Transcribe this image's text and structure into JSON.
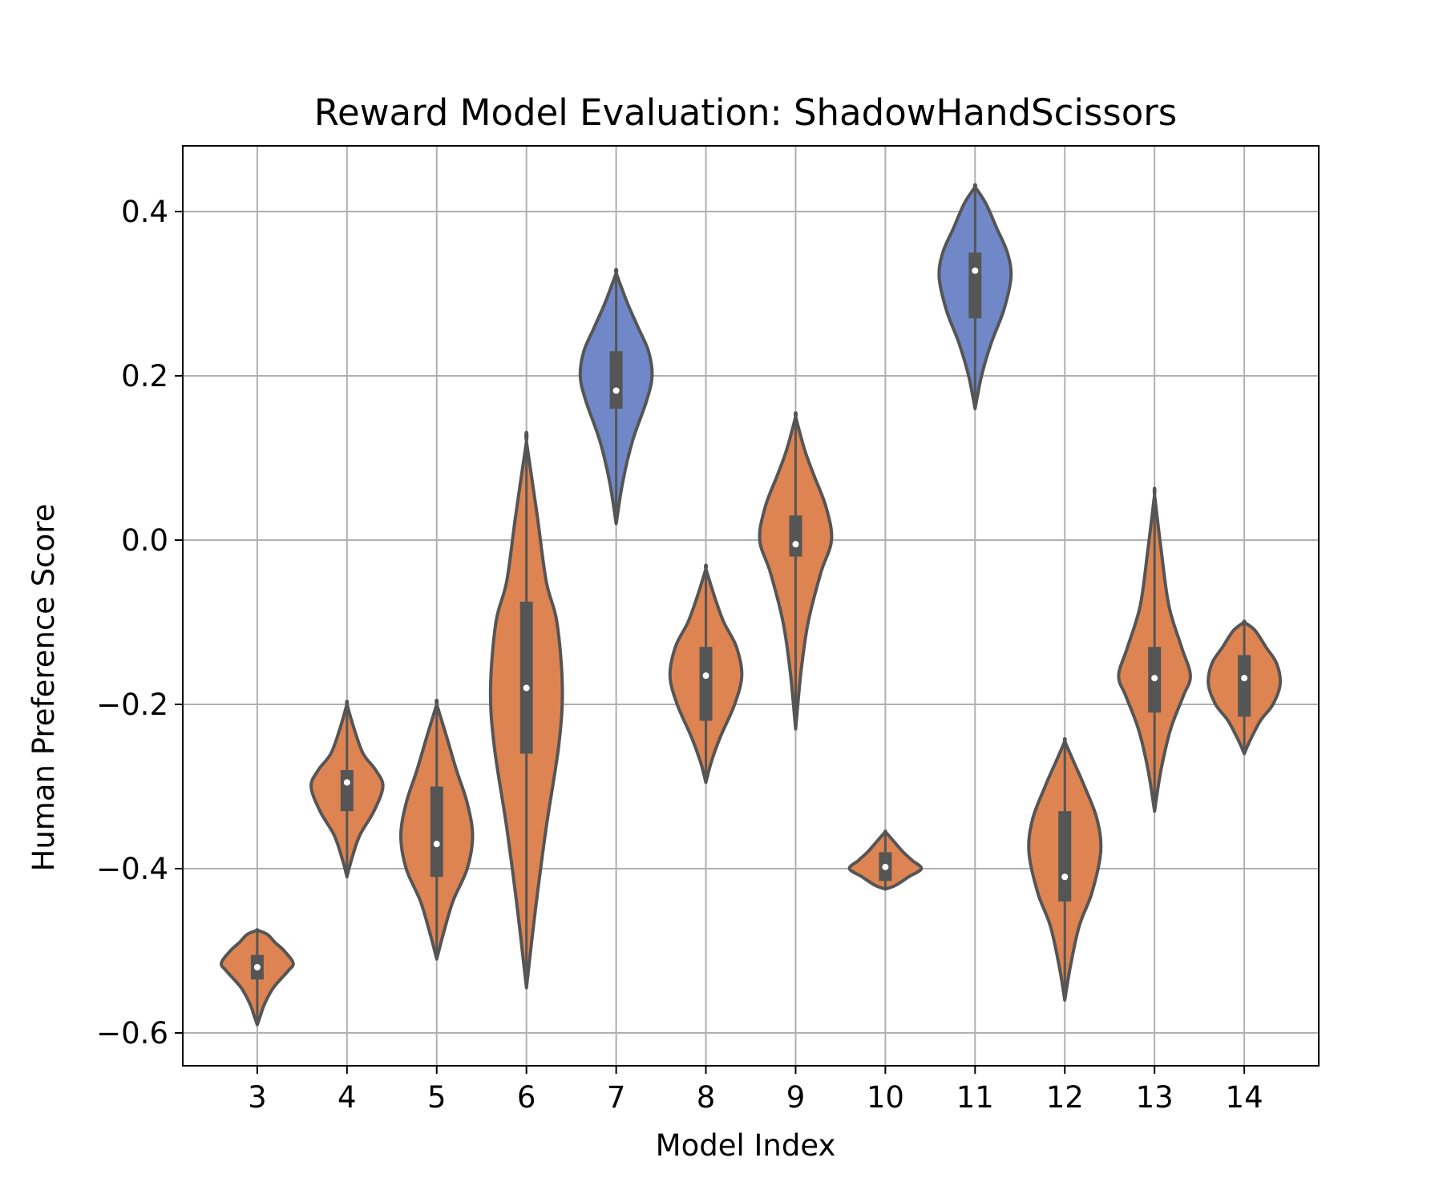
{
  "chart_data": {
    "type": "violin",
    "title": "Reward Model Evaluation: ShadowHandScissors",
    "xlabel": "Model Index",
    "ylabel": "Human Preference Score",
    "ylim": [
      -0.64,
      0.48
    ],
    "yticks": [
      -0.6,
      -0.4,
      -0.2,
      0.0,
      0.2,
      0.4
    ],
    "ytick_labels": [
      "−0.6",
      "−0.4",
      "−0.2",
      "0.0",
      "0.2",
      "0.4"
    ],
    "grid": true,
    "legend": "none",
    "colors": {
      "orange": "#dd8452",
      "blue": "#7088c8",
      "body": "#555555",
      "grid": "#b0b0b0",
      "median": "#ffffff"
    },
    "categories": [
      "3",
      "4",
      "5",
      "6",
      "7",
      "8",
      "9",
      "10",
      "11",
      "12",
      "13",
      "14"
    ],
    "violins": [
      {
        "x": "3",
        "min": -0.59,
        "max": -0.475,
        "q1": -0.535,
        "q3": -0.505,
        "median": -0.52,
        "fill": "orange",
        "profile": [
          [
            -0.59,
            0.0
          ],
          [
            -0.58,
            0.08
          ],
          [
            -0.565,
            0.2
          ],
          [
            -0.545,
            0.45
          ],
          [
            -0.525,
            0.85
          ],
          [
            -0.515,
            1.0
          ],
          [
            -0.5,
            0.75
          ],
          [
            -0.49,
            0.5
          ],
          [
            -0.48,
            0.28
          ],
          [
            -0.475,
            0.0
          ]
        ]
      },
      {
        "x": "4",
        "min": -0.41,
        "max": -0.2,
        "q1": -0.33,
        "q3": -0.28,
        "median": -0.295,
        "fill": "orange",
        "profile": [
          [
            -0.41,
            0.0
          ],
          [
            -0.39,
            0.12
          ],
          [
            -0.36,
            0.35
          ],
          [
            -0.33,
            0.75
          ],
          [
            -0.3,
            1.0
          ],
          [
            -0.28,
            0.8
          ],
          [
            -0.26,
            0.45
          ],
          [
            -0.23,
            0.2
          ],
          [
            -0.2,
            0.0
          ]
        ]
      },
      {
        "x": "5",
        "min": -0.51,
        "max": -0.2,
        "q1": -0.41,
        "q3": -0.3,
        "median": -0.37,
        "fill": "orange",
        "profile": [
          [
            -0.51,
            0.0
          ],
          [
            -0.48,
            0.18
          ],
          [
            -0.44,
            0.45
          ],
          [
            -0.4,
            0.85
          ],
          [
            -0.36,
            1.0
          ],
          [
            -0.32,
            0.85
          ],
          [
            -0.28,
            0.55
          ],
          [
            -0.24,
            0.28
          ],
          [
            -0.2,
            0.0
          ]
        ]
      },
      {
        "x": "6",
        "min": -0.545,
        "max": 0.12,
        "q1": -0.26,
        "q3": -0.075,
        "median": -0.18,
        "fill": "orange",
        "profile": [
          [
            -0.545,
            0.0
          ],
          [
            -0.45,
            0.25
          ],
          [
            -0.35,
            0.55
          ],
          [
            -0.25,
            0.9
          ],
          [
            -0.18,
            1.0
          ],
          [
            -0.1,
            0.85
          ],
          [
            -0.05,
            0.55
          ],
          [
            0.03,
            0.3
          ],
          [
            0.12,
            0.0
          ]
        ]
      },
      {
        "x": "7",
        "min": 0.02,
        "max": 0.325,
        "q1": 0.16,
        "q3": 0.23,
        "median": 0.182,
        "fill": "blue",
        "profile": [
          [
            0.02,
            0.0
          ],
          [
            0.07,
            0.18
          ],
          [
            0.12,
            0.45
          ],
          [
            0.17,
            0.85
          ],
          [
            0.2,
            1.0
          ],
          [
            0.23,
            0.9
          ],
          [
            0.26,
            0.6
          ],
          [
            0.29,
            0.3
          ],
          [
            0.325,
            0.0
          ]
        ]
      },
      {
        "x": "8",
        "min": -0.295,
        "max": -0.035,
        "q1": -0.22,
        "q3": -0.13,
        "median": -0.165,
        "fill": "orange",
        "profile": [
          [
            -0.295,
            0.0
          ],
          [
            -0.27,
            0.15
          ],
          [
            -0.24,
            0.4
          ],
          [
            -0.2,
            0.8
          ],
          [
            -0.165,
            1.0
          ],
          [
            -0.13,
            0.85
          ],
          [
            -0.1,
            0.5
          ],
          [
            -0.07,
            0.25
          ],
          [
            -0.035,
            0.0
          ]
        ]
      },
      {
        "x": "9",
        "min": -0.23,
        "max": 0.15,
        "q1": -0.02,
        "q3": 0.03,
        "median": -0.005,
        "fill": "orange",
        "profile": [
          [
            -0.23,
            0.0
          ],
          [
            -0.16,
            0.15
          ],
          [
            -0.1,
            0.35
          ],
          [
            -0.04,
            0.7
          ],
          [
            0.0,
            1.0
          ],
          [
            0.04,
            0.85
          ],
          [
            0.08,
            0.5
          ],
          [
            0.11,
            0.25
          ],
          [
            0.15,
            0.0
          ]
        ]
      },
      {
        "x": "10",
        "min": -0.425,
        "max": -0.355,
        "q1": -0.415,
        "q3": -0.38,
        "median": -0.398,
        "fill": "orange",
        "profile": [
          [
            -0.425,
            0.0
          ],
          [
            -0.42,
            0.3
          ],
          [
            -0.41,
            0.65
          ],
          [
            -0.4,
            1.0
          ],
          [
            -0.39,
            0.75
          ],
          [
            -0.38,
            0.5
          ],
          [
            -0.37,
            0.3
          ],
          [
            -0.36,
            0.1
          ],
          [
            -0.355,
            0.0
          ]
        ]
      },
      {
        "x": "11",
        "min": 0.16,
        "max": 0.43,
        "q1": 0.27,
        "q3": 0.35,
        "median": 0.328,
        "fill": "blue",
        "profile": [
          [
            0.16,
            0.0
          ],
          [
            0.2,
            0.18
          ],
          [
            0.24,
            0.45
          ],
          [
            0.28,
            0.8
          ],
          [
            0.32,
            1.0
          ],
          [
            0.35,
            0.9
          ],
          [
            0.38,
            0.6
          ],
          [
            0.41,
            0.3
          ],
          [
            0.43,
            0.0
          ]
        ]
      },
      {
        "x": "12",
        "min": -0.56,
        "max": -0.245,
        "q1": -0.44,
        "q3": -0.33,
        "median": -0.41,
        "fill": "orange",
        "profile": [
          [
            -0.56,
            0.0
          ],
          [
            -0.52,
            0.15
          ],
          [
            -0.47,
            0.4
          ],
          [
            -0.43,
            0.75
          ],
          [
            -0.38,
            1.0
          ],
          [
            -0.34,
            0.9
          ],
          [
            -0.3,
            0.55
          ],
          [
            -0.27,
            0.25
          ],
          [
            -0.245,
            0.0
          ]
        ]
      },
      {
        "x": "13",
        "min": -0.33,
        "max": 0.055,
        "q1": -0.21,
        "q3": -0.13,
        "median": -0.168,
        "fill": "orange",
        "profile": [
          [
            -0.33,
            0.0
          ],
          [
            -0.28,
            0.18
          ],
          [
            -0.23,
            0.45
          ],
          [
            -0.19,
            0.8
          ],
          [
            -0.165,
            1.0
          ],
          [
            -0.13,
            0.75
          ],
          [
            -0.08,
            0.4
          ],
          [
            -0.01,
            0.18
          ],
          [
            0.055,
            0.0
          ]
        ]
      },
      {
        "x": "14",
        "min": -0.26,
        "max": -0.1,
        "q1": -0.215,
        "q3": -0.14,
        "median": -0.168,
        "fill": "orange",
        "profile": [
          [
            -0.26,
            0.0
          ],
          [
            -0.245,
            0.15
          ],
          [
            -0.22,
            0.45
          ],
          [
            -0.2,
            0.8
          ],
          [
            -0.175,
            1.0
          ],
          [
            -0.15,
            0.9
          ],
          [
            -0.13,
            0.6
          ],
          [
            -0.11,
            0.3
          ],
          [
            -0.1,
            0.0
          ]
        ]
      }
    ]
  }
}
